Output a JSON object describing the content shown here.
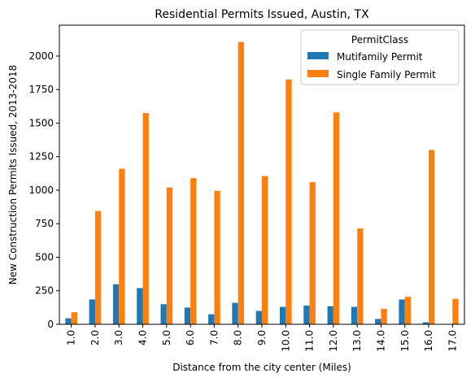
{
  "chart_data": {
    "type": "bar",
    "title": "Residential Permits Issued, Austin, TX",
    "xlabel": "Distance from the city center (Miles)",
    "ylabel": "New Construction Permits Issued, 2013-2018",
    "categories": [
      "1.0",
      "2.0",
      "3.0",
      "4.0",
      "5.0",
      "6.0",
      "7.0",
      "8.0",
      "9.0",
      "10.0",
      "11.0",
      "12.0",
      "13.0",
      "14.0",
      "15.0",
      "16.0",
      "17.0"
    ],
    "series": [
      {
        "name": "Mutifamily Permit",
        "color": "#1f77b4",
        "values": [
          45,
          185,
          298,
          270,
          150,
          125,
          75,
          160,
          100,
          130,
          140,
          135,
          130,
          40,
          185,
          15,
          0
        ]
      },
      {
        "name": "Single Family Permit",
        "color": "#ff7f0e",
        "values": [
          90,
          845,
          1160,
          1575,
          1020,
          1090,
          995,
          2105,
          1105,
          1825,
          1060,
          1580,
          715,
          115,
          205,
          1300,
          190
        ]
      }
    ],
    "ylim": [
      0,
      2230
    ],
    "yticks": [
      0,
      250,
      500,
      750,
      1000,
      1250,
      1500,
      1750,
      2000
    ],
    "grid": false,
    "legend": {
      "title": "PermitClass",
      "placement": "top-right"
    }
  }
}
